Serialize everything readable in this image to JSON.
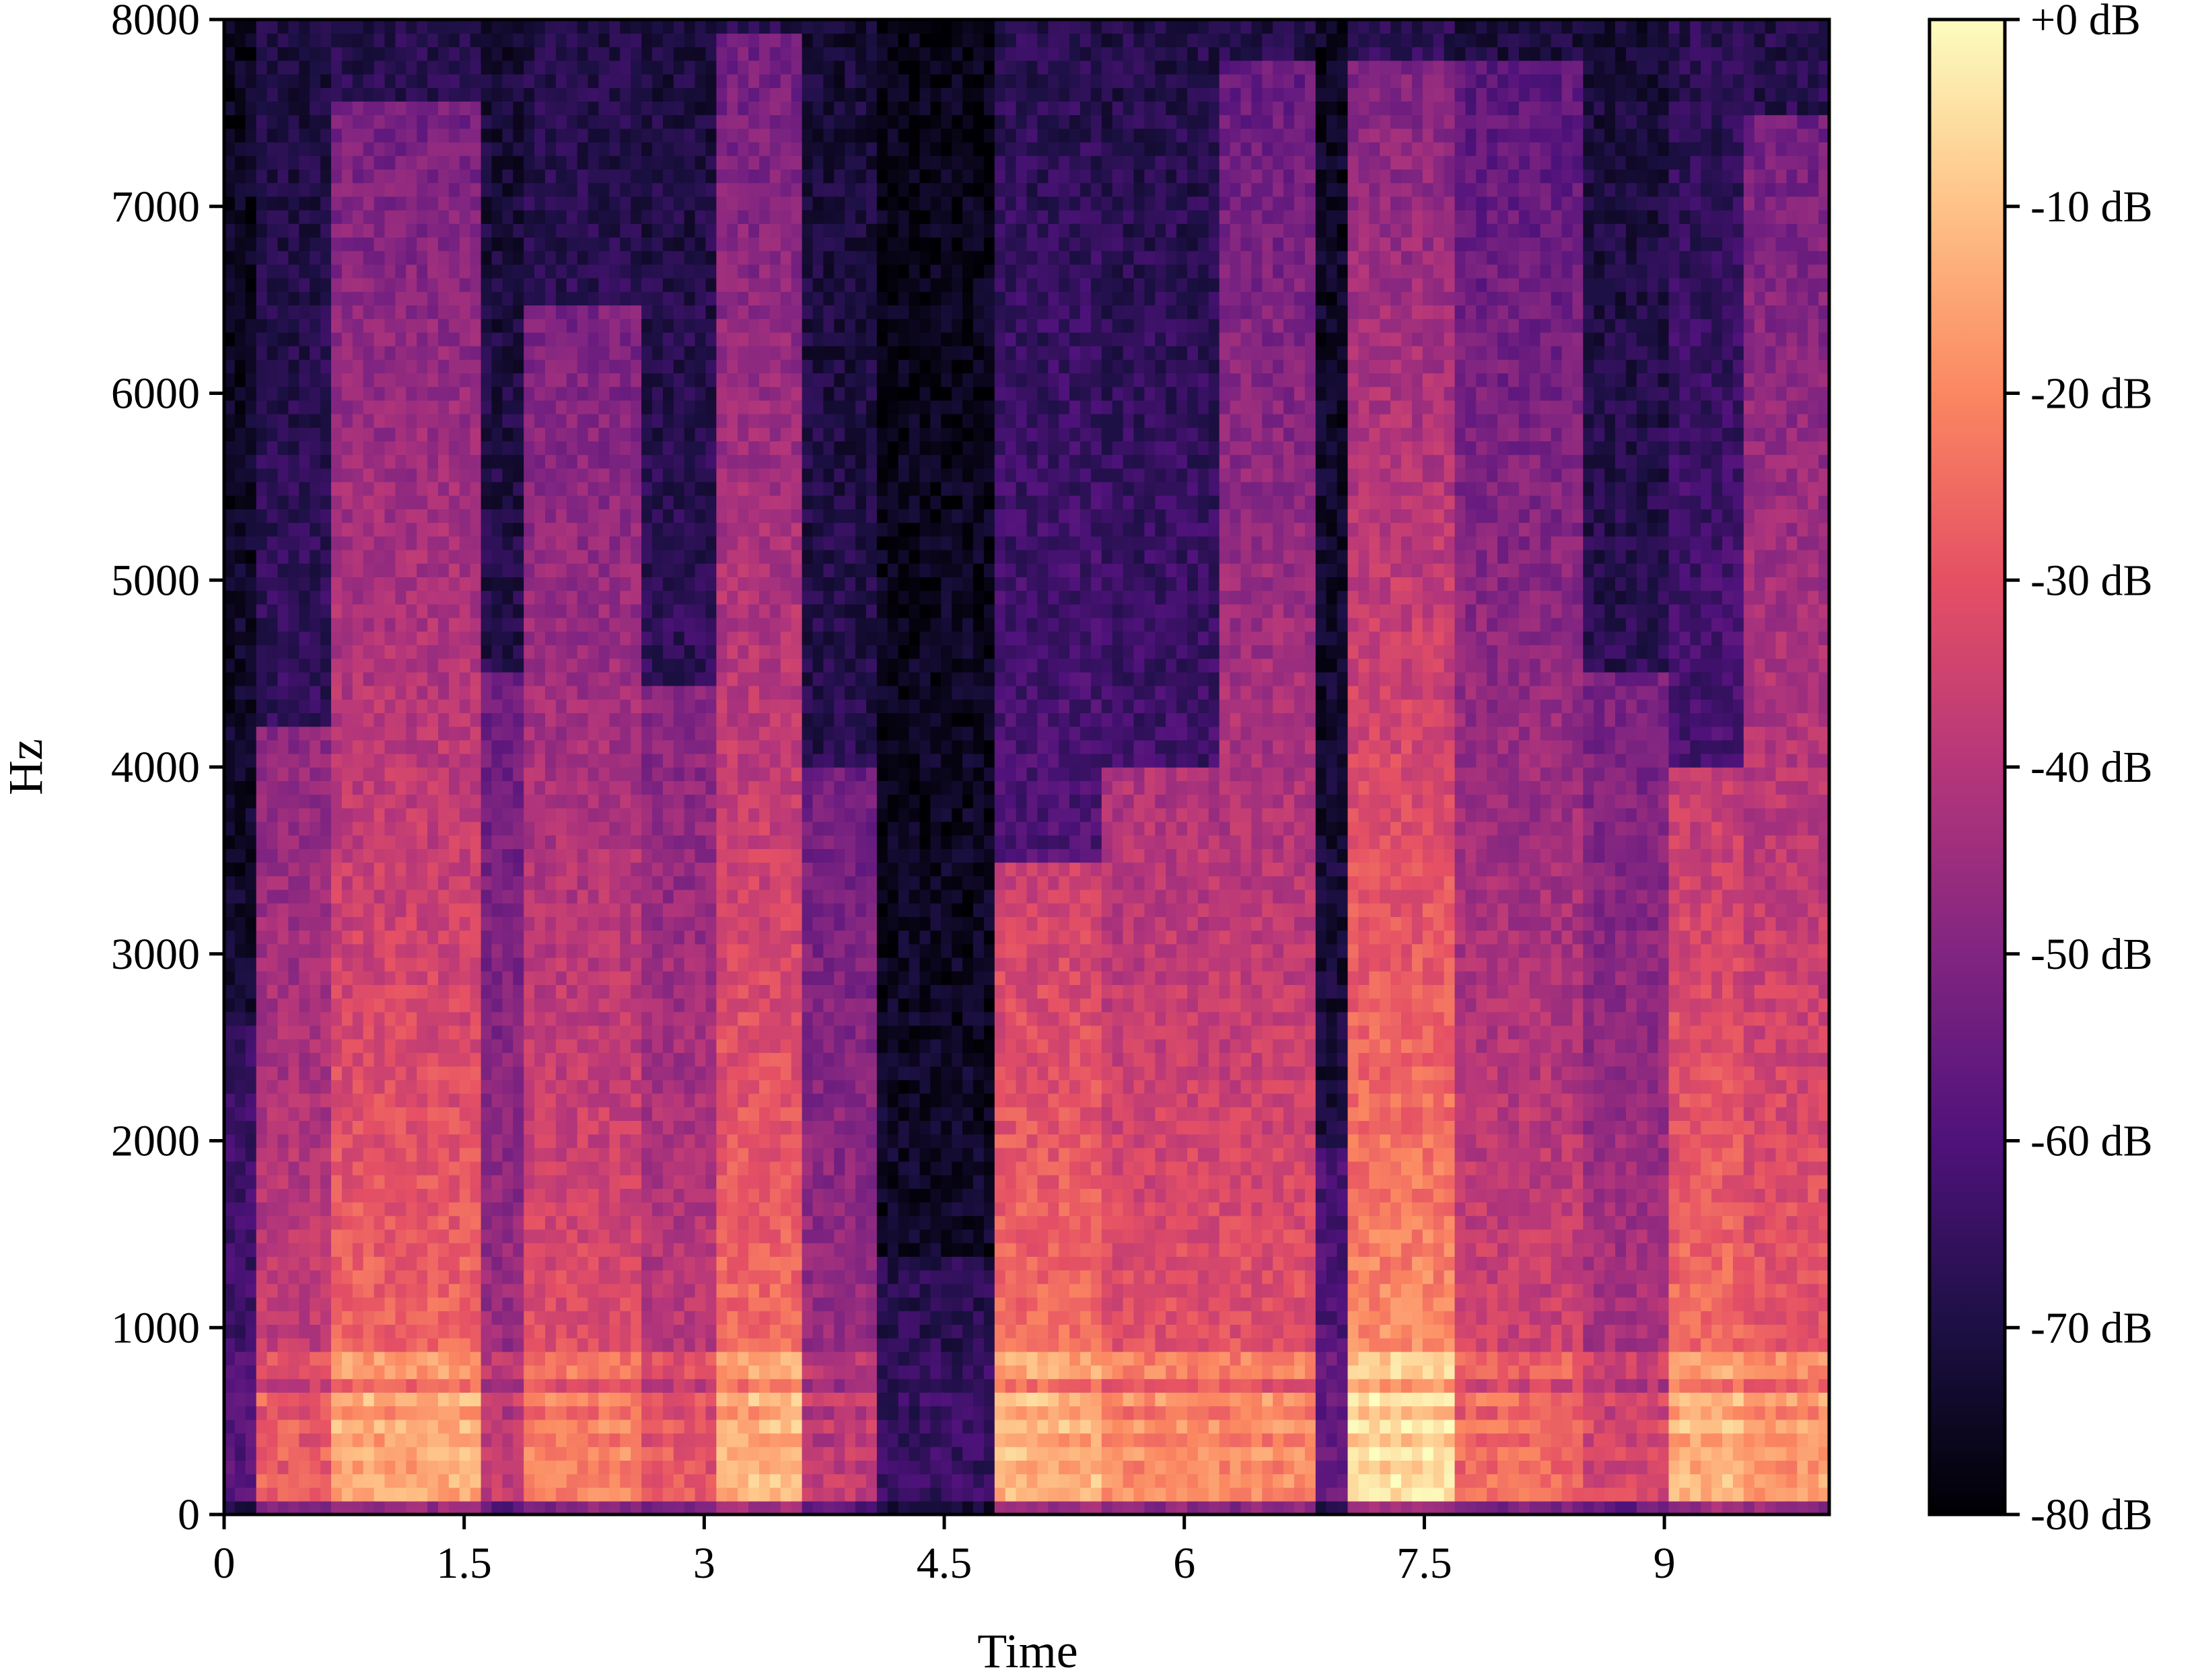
{
  "chart_data": {
    "type": "heatmap",
    "subtype": "spectrogram",
    "colormap": "magma",
    "title": "",
    "xlabel": "Time",
    "ylabel": "Hz",
    "xlim": [
      0,
      10.03
    ],
    "ylim": [
      0,
      8000
    ],
    "x_ticks": [
      0,
      1.5,
      3,
      4.5,
      6,
      7.5,
      9
    ],
    "x_tick_labels": [
      "0",
      "1.5",
      "3",
      "4.5",
      "6",
      "7.5",
      "9"
    ],
    "y_ticks": [
      0,
      1000,
      2000,
      3000,
      4000,
      5000,
      6000,
      7000,
      8000
    ],
    "y_tick_labels": [
      "0",
      "1000",
      "2000",
      "3000",
      "4000",
      "5000",
      "6000",
      "7000",
      "8000"
    ],
    "colorbar": {
      "range_db": [
        -80,
        0
      ],
      "ticks": [
        0,
        -10,
        -20,
        -30,
        -40,
        -50,
        -60,
        -70,
        -80
      ],
      "tick_labels": [
        "+0 dB",
        "-10 dB",
        "-20 dB",
        "-30 dB",
        "-40 dB",
        "-50 dB",
        "-60 dB",
        "-70 dB",
        "-80 dB"
      ],
      "colors": [
        "#000004",
        "#1c1044",
        "#4f127b",
        "#812581",
        "#b5367a",
        "#e55064",
        "#fb8761",
        "#fec287",
        "#fcfdbf"
      ]
    },
    "grid": false,
    "segments": [
      {
        "start": 0.0,
        "end": 0.22,
        "level": 0.25,
        "cutoff_hz": 2600
      },
      {
        "start": 0.22,
        "end": 0.7,
        "level": 0.62,
        "cutoff_hz": 4200
      },
      {
        "start": 0.7,
        "end": 1.6,
        "level": 0.78,
        "cutoff_hz": 7600
      },
      {
        "start": 1.6,
        "end": 1.9,
        "level": 0.5,
        "cutoff_hz": 4500
      },
      {
        "start": 1.9,
        "end": 2.6,
        "level": 0.7,
        "cutoff_hz": 6500
      },
      {
        "start": 2.6,
        "end": 3.05,
        "level": 0.6,
        "cutoff_hz": 4400
      },
      {
        "start": 3.05,
        "end": 3.6,
        "level": 0.8,
        "cutoff_hz": 7900
      },
      {
        "start": 3.6,
        "end": 4.1,
        "level": 0.5,
        "cutoff_hz": 4000
      },
      {
        "start": 4.1,
        "end": 4.8,
        "level": 0.18,
        "cutoff_hz": 1400
      },
      {
        "start": 4.8,
        "end": 5.5,
        "level": 0.8,
        "cutoff_hz": 3500
      },
      {
        "start": 5.5,
        "end": 6.25,
        "level": 0.72,
        "cutoff_hz": 4000
      },
      {
        "start": 6.25,
        "end": 6.8,
        "level": 0.72,
        "cutoff_hz": 7800
      },
      {
        "start": 6.8,
        "end": 7.05,
        "level": 0.3,
        "cutoff_hz": 2000
      },
      {
        "start": 7.05,
        "end": 7.7,
        "level": 0.88,
        "cutoff_hz": 7800
      },
      {
        "start": 7.7,
        "end": 8.5,
        "level": 0.65,
        "cutoff_hz": 7800
      },
      {
        "start": 8.5,
        "end": 9.0,
        "level": 0.55,
        "cutoff_hz": 4500
      },
      {
        "start": 9.0,
        "end": 9.5,
        "level": 0.8,
        "cutoff_hz": 4000
      },
      {
        "start": 9.5,
        "end": 10.03,
        "level": 0.75,
        "cutoff_hz": 7500
      }
    ],
    "harmonic_bands_hz": [
      150,
      300,
      450,
      600,
      800
    ]
  }
}
